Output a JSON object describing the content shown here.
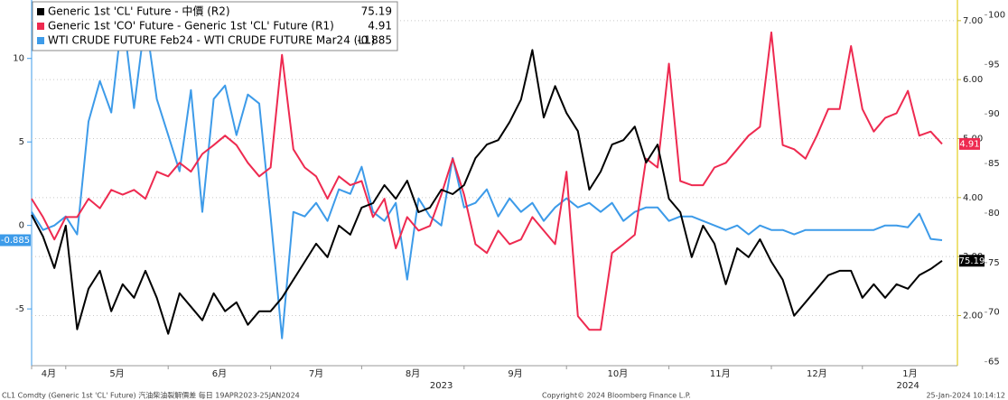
{
  "chart_data": {
    "type": "line",
    "categories": [
      "4月",
      null,
      null,
      "5月",
      null,
      null,
      null,
      null,
      null,
      null,
      null,
      null,
      "6月",
      null,
      null,
      null,
      null,
      null,
      null,
      null,
      null,
      "7月",
      null,
      null,
      null,
      null,
      null,
      null,
      null,
      "8月",
      null,
      null,
      null,
      null,
      null,
      null,
      null,
      null,
      "9月",
      null,
      null,
      null,
      null,
      null,
      null,
      null,
      null,
      "10月",
      null,
      null,
      null,
      null,
      null,
      null,
      null,
      null,
      "11月",
      null,
      null,
      null,
      null,
      null,
      null,
      null,
      null,
      "12月",
      null,
      null,
      null,
      null,
      null,
      null,
      null,
      "1月",
      null,
      null,
      null,
      null,
      null,
      null,
      null
    ],
    "x_groups": [
      null,
      null,
      null,
      null,
      null,
      null,
      null,
      null,
      null,
      null,
      null,
      null,
      null,
      null,
      null,
      null,
      null,
      null,
      null,
      null,
      null,
      null,
      null,
      null,
      null,
      null,
      null,
      null,
      null,
      null,
      null,
      null,
      null,
      null,
      null,
      null,
      "2023",
      null,
      null,
      null,
      null,
      null,
      null,
      null,
      null,
      null,
      null,
      null,
      null,
      null,
      null,
      null,
      null,
      null,
      null,
      null,
      null,
      null,
      null,
      null,
      null,
      null,
      null,
      null,
      null,
      null,
      null,
      null,
      null,
      null,
      null,
      null,
      null,
      null,
      null,
      null,
      null,
      "2024",
      null,
      null,
      null
    ],
    "series": [
      {
        "name": "Generic 1st 'CL' Future - 中價 (R2)",
        "color": "#000000",
        "axis": "y3",
        "values": [
          79.82,
          77.64,
          74.45,
          78.73,
          68.27,
          72.36,
          74.18,
          70.09,
          72.82,
          71.45,
          74.18,
          71.45,
          67.82,
          71.91,
          70.55,
          69.18,
          71.91,
          70.09,
          71.0,
          68.73,
          70.09,
          70.09,
          71.45,
          73.27,
          75.09,
          76.91,
          75.55,
          78.73,
          77.82,
          80.55,
          81.0,
          82.82,
          81.45,
          83.27,
          80.09,
          80.55,
          82.36,
          81.91,
          82.82,
          85.55,
          86.91,
          87.36,
          89.18,
          91.45,
          96.45,
          89.64,
          92.82,
          90.09,
          88.27,
          82.36,
          84.18,
          86.91,
          87.36,
          88.73,
          85.09,
          86.91,
          81.45,
          80.09,
          75.55,
          78.73,
          76.91,
          72.82,
          76.45,
          75.55,
          77.36,
          75.09,
          73.27,
          69.64,
          71.0,
          72.36,
          73.73,
          74.18,
          74.18,
          71.45,
          72.82,
          71.45,
          72.82,
          72.36,
          73.73,
          74.36,
          75.19
        ]
      },
      {
        "name": "Generic 1st 'CO' Future - Generic 1st 'CL' Future (R1)",
        "color": "#ee2a50",
        "axis": "y2",
        "values": [
          3.98,
          3.67,
          3.29,
          3.67,
          3.67,
          3.98,
          3.82,
          4.13,
          4.05,
          4.13,
          3.98,
          4.44,
          4.36,
          4.59,
          4.44,
          4.74,
          4.89,
          5.05,
          4.89,
          4.59,
          4.36,
          4.51,
          6.42,
          4.82,
          4.51,
          4.36,
          3.98,
          4.36,
          4.21,
          4.28,
          3.67,
          3.98,
          3.14,
          3.67,
          3.44,
          3.52,
          4.05,
          4.66,
          4.05,
          3.21,
          3.06,
          3.44,
          3.21,
          3.29,
          3.67,
          3.44,
          3.21,
          4.44,
          1.99,
          1.76,
          1.76,
          3.06,
          3.21,
          3.37,
          4.66,
          4.51,
          6.27,
          4.28,
          4.21,
          4.21,
          4.51,
          4.59,
          4.82,
          5.05,
          5.2,
          6.8,
          4.89,
          4.82,
          4.66,
          5.05,
          5.5,
          5.5,
          6.57,
          5.5,
          5.12,
          5.35,
          5.43,
          5.81,
          5.05,
          5.12,
          4.91
        ]
      },
      {
        "name": "WTI CRUDE FUTURE Feb24 - WTI CRUDE FUTURE Mar24 (L1)",
        "color": "#3d9be9",
        "axis": "y",
        "values": [
          0.81,
          -0.27,
          0,
          0.54,
          -0.54,
          6.22,
          8.65,
          6.76,
          12.7,
          7.03,
          12.43,
          7.57,
          5.41,
          3.24,
          8.11,
          0.81,
          7.57,
          8.38,
          5.41,
          7.84,
          7.3,
          0.54,
          -6.76,
          0.81,
          0.54,
          1.35,
          0.27,
          2.16,
          1.89,
          3.51,
          0.81,
          0.27,
          1.35,
          -3.24,
          1.62,
          0.54,
          0,
          4.05,
          1.08,
          1.35,
          2.16,
          0.54,
          1.62,
          0.81,
          1.35,
          0.27,
          1.08,
          1.62,
          1.08,
          1.35,
          0.81,
          1.35,
          0.27,
          0.81,
          1.08,
          1.08,
          0.27,
          0.54,
          0.54,
          0.27,
          0,
          -0.27,
          0,
          -0.54,
          0,
          -0.27,
          -0.27,
          -0.54,
          -0.27,
          -0.27,
          -0.27,
          -0.27,
          -0.27,
          -0.27,
          -0.27,
          0,
          0,
          -0.11,
          0.7,
          -0.81,
          -0.885
        ]
      }
    ],
    "ylim": [
      -8.4,
      13.5
    ],
    "yticks": [
      -5,
      0,
      5,
      10
    ],
    "y2lim": [
      1.15,
      7.35
    ],
    "y2ticks": [
      {
        "value": 2,
        "label": "2.00"
      },
      {
        "value": 3,
        "label": "3.00"
      },
      {
        "value": 4,
        "label": "4.00"
      },
      {
        "value": 5,
        "label": "5.00"
      },
      {
        "value": 6,
        "label": "6.00"
      },
      {
        "value": 7,
        "label": "7.00"
      }
    ],
    "y3lim": [
      64.6,
      101.5
    ],
    "y3ticks": [
      65,
      70,
      75,
      80,
      85,
      90,
      95,
      100
    ],
    "grid": true,
    "legend": "top-left",
    "footer": [
      "CL1 Comdty (Generic 1st 'CL' Future) 汽油柴油裂解價差  每日 19APR2023-25JAN2024",
      "Copyright© 2024 Bloomberg Finance L.P.",
      "25-Jan-2024 10:14:12"
    ]
  }
}
